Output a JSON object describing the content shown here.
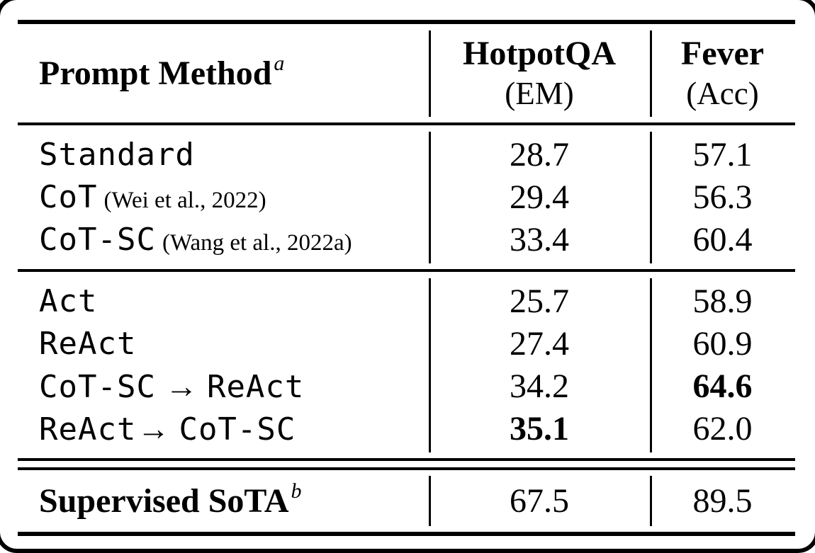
{
  "colors": {
    "text": "#000000",
    "background": "#ffffff",
    "rule": "#000000"
  },
  "table": {
    "header": {
      "method_label": "Prompt Method",
      "method_sup": "a",
      "col1_title": "HotpotQA",
      "col1_sub": "(EM)",
      "col2_title": "Fever",
      "col2_sub": "(Acc)"
    },
    "group1": {
      "rows": [
        {
          "method": "Standard",
          "cite": "",
          "hotpotqa": "28.7",
          "fever": "57.1"
        },
        {
          "method": "CoT",
          "cite": "(Wei et al., 2022)",
          "hotpotqa": "29.4",
          "fever": "56.3"
        },
        {
          "method": "CoT-SC",
          "cite": "(Wang et al., 2022a)",
          "hotpotqa": "33.4",
          "fever": "60.4"
        }
      ]
    },
    "group2": {
      "rows": [
        {
          "method": "Act",
          "hotpotqa": "25.7",
          "fever": "58.9"
        },
        {
          "method": "ReAct",
          "hotpotqa": "27.4",
          "fever": "60.9"
        },
        {
          "method_pre": "CoT-SC",
          "arrow": "→",
          "method_post": "ReAct",
          "hotpotqa": "34.2",
          "fever": "64.6",
          "bold_fever": true
        },
        {
          "method_pre": "ReAct",
          "arrow": "→",
          "method_post": "CoT-SC",
          "hotpotqa": "35.1",
          "fever": "62.0",
          "bold_hotpotqa": true
        }
      ]
    },
    "footer": {
      "label": "Supervised SoTA",
      "sup": "b",
      "hotpotqa": "67.5",
      "fever": "89.5"
    }
  }
}
